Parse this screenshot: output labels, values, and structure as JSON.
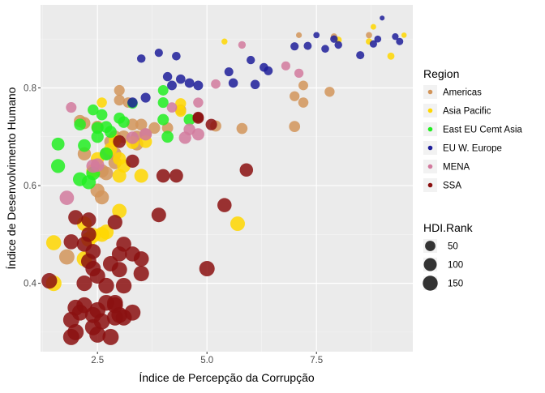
{
  "chart_data": {
    "type": "scatter",
    "title": "",
    "xlabel": "Índice de Percepção da Corrupção",
    "ylabel": "Índice de Desenvolvimento Humano",
    "xlim": [
      1.2,
      9.7
    ],
    "ylim": [
      0.26,
      0.97
    ],
    "x_ticks": [
      2.5,
      5.0,
      7.5
    ],
    "x_tick_labels": [
      "2.5",
      "5.0",
      "7.5"
    ],
    "y_ticks": [
      0.4,
      0.6,
      0.8
    ],
    "y_tick_labels": [
      "0.4",
      "0.6",
      "0.8"
    ],
    "grid": true,
    "legend_placement": "right",
    "color_legend_title": "Region",
    "size_legend_title": "HDI.Rank",
    "size_legend": [
      {
        "label": "50",
        "value": 50
      },
      {
        "label": "100",
        "value": 100
      },
      {
        "label": "150",
        "value": 150
      }
    ],
    "colors": {
      "Americas": "#D2955A",
      "Asia Pacific": "#FFD700",
      "East EU Cemt Asia": "#22EE22",
      "EU W. Europe": "#1E1E9A",
      "MENA": "#D27A9E",
      "SSA": "#8B1010"
    },
    "series": [
      {
        "name": "Americas",
        "points": [
          {
            "x": 7.1,
            "y": 0.908,
            "rank": 4
          },
          {
            "x": 7.9,
            "y": 0.905,
            "rank": 8
          },
          {
            "x": 8.7,
            "y": 0.908,
            "rank": 6
          },
          {
            "x": 7.2,
            "y": 0.805,
            "rank": 40
          },
          {
            "x": 7.0,
            "y": 0.783,
            "rank": 44
          },
          {
            "x": 7.2,
            "y": 0.77,
            "rank": 48
          },
          {
            "x": 7.8,
            "y": 0.792,
            "rank": 45
          },
          {
            "x": 5.8,
            "y": 0.717,
            "rank": 62
          },
          {
            "x": 7.0,
            "y": 0.721,
            "rank": 63
          },
          {
            "x": 5.2,
            "y": 0.722,
            "rank": 64
          },
          {
            "x": 4.1,
            "y": 0.718,
            "rank": 65
          },
          {
            "x": 4.4,
            "y": 0.755,
            "rank": 60
          },
          {
            "x": 3.0,
            "y": 0.795,
            "rank": 55
          },
          {
            "x": 3.0,
            "y": 0.775,
            "rank": 58
          },
          {
            "x": 3.5,
            "y": 0.725,
            "rank": 75
          },
          {
            "x": 3.3,
            "y": 0.725,
            "rank": 77
          },
          {
            "x": 3.8,
            "y": 0.718,
            "rank": 72
          },
          {
            "x": 3.6,
            "y": 0.705,
            "rank": 80
          },
          {
            "x": 3.4,
            "y": 0.7,
            "rank": 82
          },
          {
            "x": 2.1,
            "y": 0.732,
            "rank": 85
          },
          {
            "x": 2.2,
            "y": 0.728,
            "rank": 83
          },
          {
            "x": 2.5,
            "y": 0.72,
            "rank": 88
          },
          {
            "x": 2.9,
            "y": 0.7,
            "rank": 90
          },
          {
            "x": 3.1,
            "y": 0.7,
            "rank": 92
          },
          {
            "x": 2.8,
            "y": 0.69,
            "rank": 95
          },
          {
            "x": 2.7,
            "y": 0.665,
            "rank": 100
          },
          {
            "x": 2.9,
            "y": 0.665,
            "rank": 102
          },
          {
            "x": 3.4,
            "y": 0.685,
            "rank": 98
          },
          {
            "x": 2.9,
            "y": 0.647,
            "rank": 105
          },
          {
            "x": 2.2,
            "y": 0.665,
            "rank": 108
          },
          {
            "x": 2.6,
            "y": 0.63,
            "rank": 115
          },
          {
            "x": 2.7,
            "y": 0.625,
            "rank": 118
          },
          {
            "x": 2.5,
            "y": 0.59,
            "rank": 125
          },
          {
            "x": 2.6,
            "y": 0.576,
            "rank": 128
          },
          {
            "x": 1.8,
            "y": 0.454,
            "rank": 160
          },
          {
            "x": 3.2,
            "y": 0.77,
            "rank": 52
          }
        ]
      },
      {
        "name": "Asia Pacific",
        "points": [
          {
            "x": 5.4,
            "y": 0.895,
            "rank": 5
          },
          {
            "x": 8.7,
            "y": 0.895,
            "rank": 7
          },
          {
            "x": 8.8,
            "y": 0.925,
            "rank": 3
          },
          {
            "x": 9.5,
            "y": 0.908,
            "rank": 2
          },
          {
            "x": 9.2,
            "y": 0.865,
            "rank": 12
          },
          {
            "x": 8.0,
            "y": 0.898,
            "rank": 10
          },
          {
            "x": 4.4,
            "y": 0.768,
            "rank": 57
          },
          {
            "x": 4.4,
            "y": 0.752,
            "rank": 61
          },
          {
            "x": 2.6,
            "y": 0.77,
            "rank": 47
          },
          {
            "x": 3.6,
            "y": 0.69,
            "rank": 95
          },
          {
            "x": 3.3,
            "y": 0.688,
            "rank": 97
          },
          {
            "x": 2.8,
            "y": 0.675,
            "rank": 101
          },
          {
            "x": 3.0,
            "y": 0.655,
            "rank": 104
          },
          {
            "x": 3.0,
            "y": 0.62,
            "rank": 120
          },
          {
            "x": 3.1,
            "y": 0.64,
            "rank": 110
          },
          {
            "x": 2.5,
            "y": 0.655,
            "rank": 108
          },
          {
            "x": 2.4,
            "y": 0.63,
            "rank": 116
          },
          {
            "x": 3.5,
            "y": 0.62,
            "rank": 122
          },
          {
            "x": 3.0,
            "y": 0.548,
            "rank": 138
          },
          {
            "x": 2.2,
            "y": 0.522,
            "rank": 143
          },
          {
            "x": 2.7,
            "y": 0.505,
            "rank": 147
          },
          {
            "x": 2.4,
            "y": 0.498,
            "rank": 150
          },
          {
            "x": 2.3,
            "y": 0.49,
            "rank": 152
          },
          {
            "x": 1.5,
            "y": 0.483,
            "rank": 152
          },
          {
            "x": 1.5,
            "y": 0.4,
            "rank": 170
          },
          {
            "x": 5.7,
            "y": 0.522,
            "rank": 140
          },
          {
            "x": 2.2,
            "y": 0.45,
            "rank": 158
          },
          {
            "x": 2.6,
            "y": 0.5,
            "rank": 148
          },
          {
            "x": 2.9,
            "y": 0.692,
            "rank": 93
          }
        ]
      },
      {
        "name": "East EU Cemt Asia",
        "points": [
          {
            "x": 3.3,
            "y": 0.768,
            "rank": 50
          },
          {
            "x": 4.0,
            "y": 0.795,
            "rank": 52
          },
          {
            "x": 4.0,
            "y": 0.77,
            "rank": 55
          },
          {
            "x": 4.0,
            "y": 0.735,
            "rank": 68
          },
          {
            "x": 4.6,
            "y": 0.735,
            "rank": 70
          },
          {
            "x": 4.1,
            "y": 0.7,
            "rank": 78
          },
          {
            "x": 3.0,
            "y": 0.738,
            "rank": 67
          },
          {
            "x": 2.4,
            "y": 0.755,
            "rank": 60
          },
          {
            "x": 2.6,
            "y": 0.745,
            "rank": 63
          },
          {
            "x": 2.1,
            "y": 0.725,
            "rank": 76
          },
          {
            "x": 2.5,
            "y": 0.718,
            "rank": 80
          },
          {
            "x": 2.7,
            "y": 0.72,
            "rank": 78
          },
          {
            "x": 2.8,
            "y": 0.71,
            "rank": 82
          },
          {
            "x": 2.5,
            "y": 0.7,
            "rank": 88
          },
          {
            "x": 3.1,
            "y": 0.73,
            "rank": 72
          },
          {
            "x": 2.2,
            "y": 0.682,
            "rank": 96
          },
          {
            "x": 2.7,
            "y": 0.665,
            "rank": 102
          },
          {
            "x": 2.4,
            "y": 0.625,
            "rank": 118
          },
          {
            "x": 1.6,
            "y": 0.685,
            "rank": 99
          },
          {
            "x": 1.6,
            "y": 0.64,
            "rank": 125
          },
          {
            "x": 2.1,
            "y": 0.613,
            "rank": 125
          },
          {
            "x": 2.3,
            "y": 0.607,
            "rank": 127
          }
        ]
      },
      {
        "name": "EU W. Europe",
        "points": [
          {
            "x": 9.0,
            "y": 0.943,
            "rank": 1
          },
          {
            "x": 9.3,
            "y": 0.905,
            "rank": 9
          },
          {
            "x": 8.9,
            "y": 0.9,
            "rank": 11
          },
          {
            "x": 9.4,
            "y": 0.895,
            "rank": 13
          },
          {
            "x": 8.8,
            "y": 0.89,
            "rank": 14
          },
          {
            "x": 7.5,
            "y": 0.908,
            "rank": 6
          },
          {
            "x": 7.9,
            "y": 0.9,
            "rank": 15
          },
          {
            "x": 8.0,
            "y": 0.888,
            "rank": 17
          },
          {
            "x": 7.7,
            "y": 0.88,
            "rank": 18
          },
          {
            "x": 7.3,
            "y": 0.886,
            "rank": 20
          },
          {
            "x": 7.0,
            "y": 0.885,
            "rank": 22
          },
          {
            "x": 8.5,
            "y": 0.867,
            "rank": 21
          },
          {
            "x": 6.3,
            "y": 0.842,
            "rank": 27
          },
          {
            "x": 6.4,
            "y": 0.835,
            "rank": 29
          },
          {
            "x": 6.0,
            "y": 0.857,
            "rank": 24
          },
          {
            "x": 5.5,
            "y": 0.833,
            "rank": 30
          },
          {
            "x": 6.1,
            "y": 0.807,
            "rank": 35
          },
          {
            "x": 5.6,
            "y": 0.81,
            "rank": 36
          },
          {
            "x": 4.8,
            "y": 0.805,
            "rank": 40
          },
          {
            "x": 4.6,
            "y": 0.81,
            "rank": 38
          },
          {
            "x": 4.4,
            "y": 0.818,
            "rank": 36
          },
          {
            "x": 3.9,
            "y": 0.872,
            "rank": 23
          },
          {
            "x": 3.5,
            "y": 0.86,
            "rank": 25
          },
          {
            "x": 4.3,
            "y": 0.865,
            "rank": 26
          },
          {
            "x": 4.1,
            "y": 0.823,
            "rank": 34
          },
          {
            "x": 3.6,
            "y": 0.78,
            "rank": 42
          },
          {
            "x": 4.2,
            "y": 0.805,
            "rank": 39
          },
          {
            "x": 3.3,
            "y": 0.77,
            "rank": 47
          }
        ]
      },
      {
        "name": "MENA",
        "points": [
          {
            "x": 5.8,
            "y": 0.888,
            "rank": 16
          },
          {
            "x": 7.1,
            "y": 0.83,
            "rank": 33
          },
          {
            "x": 6.8,
            "y": 0.845,
            "rank": 31
          },
          {
            "x": 5.2,
            "y": 0.808,
            "rank": 37
          },
          {
            "x": 4.8,
            "y": 0.77,
            "rank": 46
          },
          {
            "x": 4.2,
            "y": 0.76,
            "rank": 49
          },
          {
            "x": 4.6,
            "y": 0.715,
            "rank": 74
          },
          {
            "x": 4.5,
            "y": 0.698,
            "rank": 86
          },
          {
            "x": 4.8,
            "y": 0.705,
            "rank": 84
          },
          {
            "x": 3.6,
            "y": 0.705,
            "rank": 89
          },
          {
            "x": 3.3,
            "y": 0.698,
            "rank": 91
          },
          {
            "x": 1.9,
            "y": 0.76,
            "rank": 54
          },
          {
            "x": 2.5,
            "y": 0.642,
            "rank": 112
          },
          {
            "x": 1.8,
            "y": 0.575,
            "rank": 135
          },
          {
            "x": 2.4,
            "y": 0.64,
            "rank": 113
          }
        ]
      },
      {
        "name": "SSA",
        "points": [
          {
            "x": 5.9,
            "y": 0.632,
            "rank": 110
          },
          {
            "x": 4.3,
            "y": 0.62,
            "rank": 115
          },
          {
            "x": 4.0,
            "y": 0.62,
            "rank": 114
          },
          {
            "x": 5.4,
            "y": 0.56,
            "rank": 130
          },
          {
            "x": 4.8,
            "y": 0.74,
            "rank": 62
          },
          {
            "x": 5.1,
            "y": 0.725,
            "rank": 70
          },
          {
            "x": 2.0,
            "y": 0.535,
            "rank": 142
          },
          {
            "x": 2.3,
            "y": 0.53,
            "rank": 144
          },
          {
            "x": 2.9,
            "y": 0.525,
            "rank": 145
          },
          {
            "x": 3.9,
            "y": 0.54,
            "rank": 141
          },
          {
            "x": 3.5,
            "y": 0.45,
            "rank": 156
          },
          {
            "x": 3.5,
            "y": 0.42,
            "rank": 166
          },
          {
            "x": 3.0,
            "y": 0.46,
            "rank": 155
          },
          {
            "x": 3.1,
            "y": 0.48,
            "rank": 153
          },
          {
            "x": 3.0,
            "y": 0.428,
            "rank": 163
          },
          {
            "x": 2.3,
            "y": 0.5,
            "rank": 151
          },
          {
            "x": 2.2,
            "y": 0.48,
            "rank": 154
          },
          {
            "x": 1.9,
            "y": 0.485,
            "rank": 153
          },
          {
            "x": 2.4,
            "y": 0.465,
            "rank": 156
          },
          {
            "x": 2.3,
            "y": 0.445,
            "rank": 160
          },
          {
            "x": 2.4,
            "y": 0.43,
            "rank": 162
          },
          {
            "x": 2.8,
            "y": 0.44,
            "rank": 161
          },
          {
            "x": 2.5,
            "y": 0.415,
            "rank": 166
          },
          {
            "x": 2.2,
            "y": 0.4,
            "rank": 168
          },
          {
            "x": 2.7,
            "y": 0.36,
            "rank": 176
          },
          {
            "x": 2.9,
            "y": 0.355,
            "rank": 178
          },
          {
            "x": 2.2,
            "y": 0.355,
            "rank": 177
          },
          {
            "x": 2.0,
            "y": 0.35,
            "rank": 179
          },
          {
            "x": 2.5,
            "y": 0.345,
            "rank": 180
          },
          {
            "x": 2.1,
            "y": 0.34,
            "rank": 181
          },
          {
            "x": 2.4,
            "y": 0.335,
            "rank": 182
          },
          {
            "x": 1.9,
            "y": 0.325,
            "rank": 183
          },
          {
            "x": 2.6,
            "y": 0.322,
            "rank": 184
          },
          {
            "x": 2.4,
            "y": 0.31,
            "rank": 185
          },
          {
            "x": 2.0,
            "y": 0.3,
            "rank": 186
          },
          {
            "x": 3.0,
            "y": 0.335,
            "rank": 180
          },
          {
            "x": 3.3,
            "y": 0.34,
            "rank": 181
          },
          {
            "x": 3.1,
            "y": 0.33,
            "rank": 182
          },
          {
            "x": 2.9,
            "y": 0.36,
            "rank": 175
          },
          {
            "x": 2.8,
            "y": 0.29,
            "rank": 187
          },
          {
            "x": 2.5,
            "y": 0.295,
            "rank": 187
          },
          {
            "x": 1.9,
            "y": 0.29,
            "rank": 187
          },
          {
            "x": 3.1,
            "y": 0.395,
            "rank": 171
          },
          {
            "x": 2.9,
            "y": 0.33,
            "rank": 183
          },
          {
            "x": 3.3,
            "y": 0.46,
            "rank": 155
          },
          {
            "x": 1.4,
            "y": 0.405,
            "rank": 169
          },
          {
            "x": 2.7,
            "y": 0.395,
            "rank": 172
          },
          {
            "x": 5.0,
            "y": 0.43,
            "rank": 164
          },
          {
            "x": 3.0,
            "y": 0.69,
            "rank": 96
          },
          {
            "x": 3.3,
            "y": 0.65,
            "rank": 106
          },
          {
            "x": 4.8,
            "y": 0.738,
            "rank": 66
          }
        ]
      }
    ]
  }
}
